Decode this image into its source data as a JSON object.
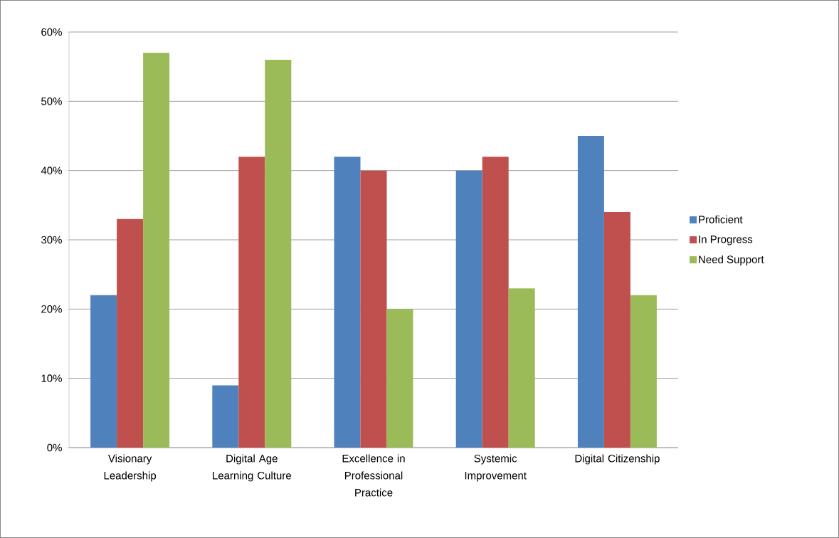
{
  "chart_data": {
    "type": "bar",
    "categories": [
      "Visionary Leadership",
      "Digital Age Learning Culture",
      "Excellence in Professional Practice",
      "Systemic Improvement",
      "Digital Citizenship"
    ],
    "series": [
      {
        "name": "Proficient",
        "color": "#4f81bd",
        "values": [
          22,
          9,
          42,
          40,
          45
        ]
      },
      {
        "name": "In Progress",
        "color": "#c0504d",
        "values": [
          33,
          42,
          40,
          42,
          34
        ]
      },
      {
        "name": "Need Support",
        "color": "#9bbb59",
        "values": [
          57,
          56,
          20,
          23,
          22
        ]
      }
    ],
    "ylim": [
      0,
      60
    ],
    "yticks": [
      {
        "value": 0,
        "label": "0%"
      },
      {
        "value": 10,
        "label": "10%"
      },
      {
        "value": 20,
        "label": "20%"
      },
      {
        "value": 30,
        "label": "30%"
      },
      {
        "value": 40,
        "label": "40%"
      },
      {
        "value": 50,
        "label": "50%"
      },
      {
        "value": 60,
        "label": "60%"
      }
    ],
    "grid": "y",
    "legend": "right"
  }
}
